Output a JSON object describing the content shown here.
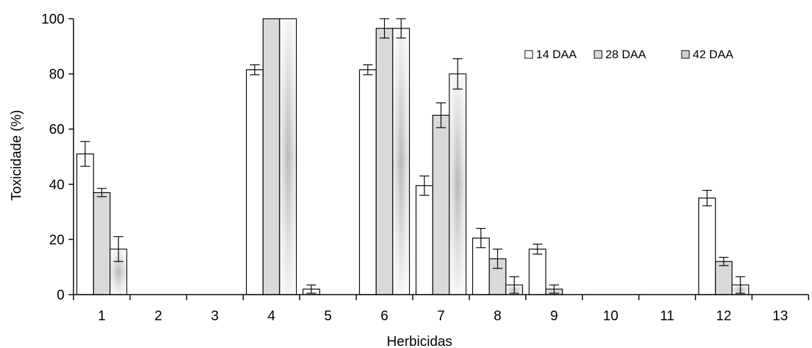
{
  "chart_data": {
    "type": "bar",
    "xlabel": "Herbicidas",
    "ylabel": "Toxicidade (%)",
    "ylim": [
      0,
      100
    ],
    "yticks": [
      0,
      20,
      40,
      60,
      80,
      100
    ],
    "categories": [
      "1",
      "2",
      "3",
      "4",
      "5",
      "6",
      "7",
      "8",
      "9",
      "10",
      "11",
      "12",
      "13"
    ],
    "legend_position": "top-right",
    "grid": false,
    "series": [
      {
        "name": "14 DAA",
        "color": "#ffffff",
        "values": [
          51,
          0,
          0,
          81.5,
          2,
          81.5,
          39.5,
          20.5,
          16.5,
          0,
          0,
          35,
          0
        ],
        "errors": [
          4.5,
          0,
          0,
          1.8,
          1.5,
          1.8,
          3.5,
          3.5,
          1.8,
          0,
          0,
          2.8,
          0
        ]
      },
      {
        "name": "28 DAA",
        "color": "#d9d9d9",
        "values": [
          37,
          0,
          0,
          100,
          0,
          96.5,
          65,
          13,
          2,
          0,
          0,
          12,
          0
        ],
        "errors": [
          1.5,
          0,
          0,
          0,
          0,
          3.5,
          4.5,
          3.5,
          1.5,
          0,
          0,
          1.5,
          0
        ]
      },
      {
        "name": "42 DAA",
        "color": "#d9d9d9",
        "values": [
          16.5,
          0,
          0,
          100,
          0,
          96.5,
          80,
          3.5,
          0,
          0,
          0,
          3.5,
          0
        ],
        "errors": [
          4.5,
          0,
          0,
          0,
          0,
          3.5,
          5.5,
          3,
          0,
          0,
          0,
          3,
          0
        ]
      }
    ]
  }
}
